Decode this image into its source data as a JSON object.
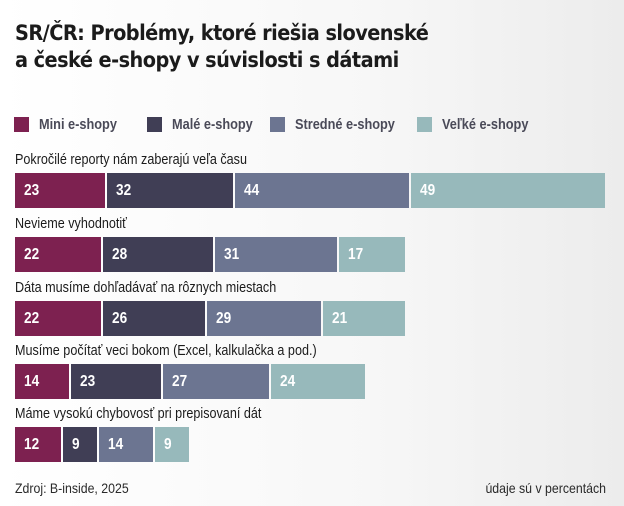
{
  "chart_data": {
    "type": "bar",
    "orientation": "horizontal-stacked",
    "title": "SR/ČR: Problémy, ktoré riešia slovenské a české e-shopy v súvislosti s dátami",
    "title_lines": [
      "SR/ČR: Problémy, ktoré riešia slovenské",
      "a české e-shopy v súvislosti s dátami"
    ],
    "categories": [
      "Pokročilé reporty nám zaberajú veľa času",
      "Nevieme vyhodnotiť",
      "Dáta musíme dohľadávať na rôznych miestach",
      "Musíme počítať veci bokom (Excel, kalkulačka a pod.)",
      "Máme vysokú chybovosť pri prepisovaní dát"
    ],
    "series": [
      {
        "name": "Mini e-shopy",
        "color": "#7d2150",
        "values": [
          23,
          22,
          22,
          14,
          12
        ]
      },
      {
        "name": "Malé e-shopy",
        "color": "#403e55",
        "values": [
          32,
          28,
          26,
          23,
          9
        ]
      },
      {
        "name": "Stredné e-shopy",
        "color": "#6c7591",
        "values": [
          44,
          31,
          29,
          27,
          14
        ]
      },
      {
        "name": "Veľké e-shopy",
        "color": "#97b9bb",
        "values": [
          49,
          17,
          21,
          24,
          9
        ]
      }
    ],
    "legend_position": "top-left",
    "grid": false,
    "xlabel": "",
    "ylabel": ""
  },
  "footer": {
    "source": "Zdroj: B-inside, 2025",
    "unit_note": "údaje sú v percentách"
  }
}
